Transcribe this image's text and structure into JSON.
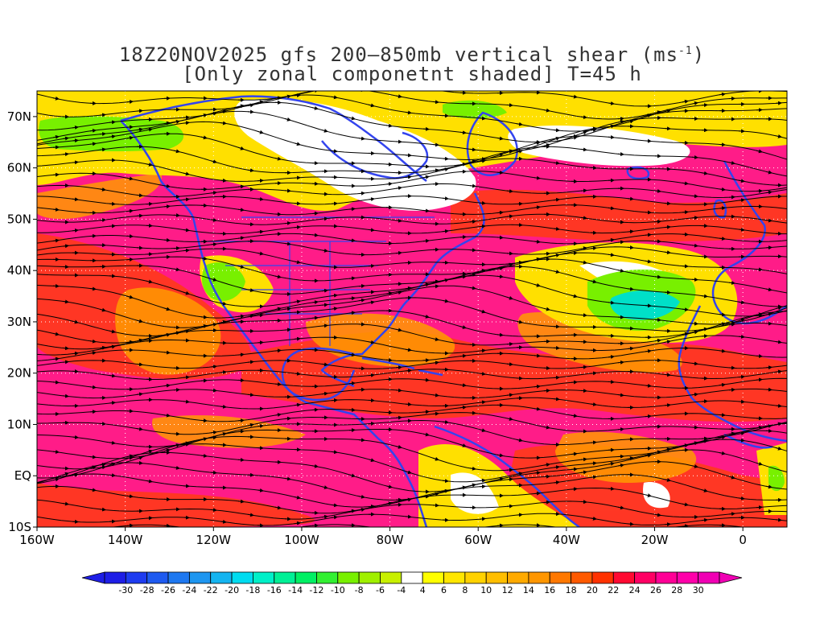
{
  "title": {
    "line1_prefix": "18Z20NOV2025 gfs 200–850mb vertical shear (ms",
    "line1_sup": "-1",
    "line1_suffix": ")",
    "line2": "[Only zonal componetnt shaded] T=45 h"
  },
  "map": {
    "lon_range": [
      -160,
      10
    ],
    "lat_range": [
      -10,
      75
    ],
    "lon_ticks": [
      {
        "value": -160,
        "label": "160W"
      },
      {
        "value": -140,
        "label": "140W"
      },
      {
        "value": -120,
        "label": "120W"
      },
      {
        "value": -100,
        "label": "100W"
      },
      {
        "value": -80,
        "label": "80W"
      },
      {
        "value": -60,
        "label": "60W"
      },
      {
        "value": -40,
        "label": "40W"
      },
      {
        "value": -20,
        "label": "20W"
      },
      {
        "value": 0,
        "label": "0"
      }
    ],
    "lat_ticks": [
      {
        "value": 70,
        "label": "70N"
      },
      {
        "value": 60,
        "label": "60N"
      },
      {
        "value": 50,
        "label": "50N"
      },
      {
        "value": 40,
        "label": "40N"
      },
      {
        "value": 30,
        "label": "30N"
      },
      {
        "value": 20,
        "label": "20N"
      },
      {
        "value": 10,
        "label": "10N"
      },
      {
        "value": 0,
        "label": "EQ"
      },
      {
        "value": -10,
        "label": "10S"
      }
    ],
    "coast_color": "#3344ee",
    "streamline_color": "#000000"
  },
  "colorbar": {
    "labels": [
      "-30",
      "-28",
      "-26",
      "-24",
      "-22",
      "-20",
      "-18",
      "-16",
      "-14",
      "-12",
      "-10",
      "-8",
      "-6",
      "-4",
      "4",
      "6",
      "8",
      "10",
      "12",
      "14",
      "16",
      "18",
      "20",
      "22",
      "24",
      "26",
      "28",
      "30"
    ],
    "colors": [
      "#1e1ee6",
      "#1e3cf0",
      "#1e5af0",
      "#1e78f0",
      "#1e96f0",
      "#14b4f0",
      "#00dcf0",
      "#00f0c8",
      "#00f096",
      "#00f064",
      "#32f032",
      "#78f000",
      "#a0f000",
      "#c8f000",
      "#ffffff",
      "#ffff00",
      "#ffe600",
      "#ffd200",
      "#ffbe00",
      "#ffaa00",
      "#ff9600",
      "#ff7800",
      "#ff5a00",
      "#ff3200",
      "#ff0a32",
      "#ff0064",
      "#ff0096",
      "#ff00aa",
      "#f000b4"
    ]
  }
}
